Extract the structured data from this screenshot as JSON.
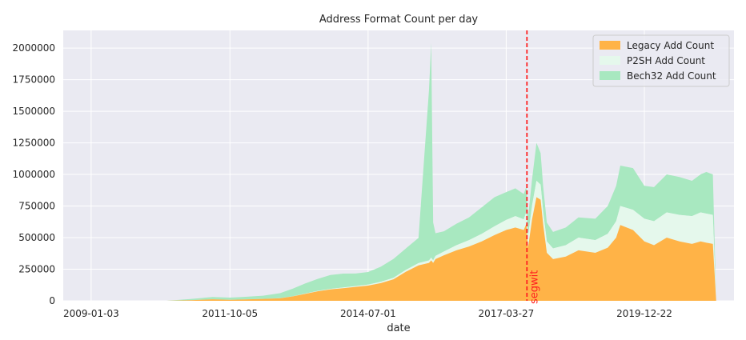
{
  "chart_data": {
    "type": "area",
    "stacked": true,
    "title": "Address Format Count per day",
    "xlabel": "date",
    "ylabel": "",
    "x_tick_labels": [
      "2009-01-03",
      "2011-10-05",
      "2014-07-01",
      "2017-03-27",
      "2019-12-22"
    ],
    "y_ticks": [
      0,
      250000,
      500000,
      750000,
      1000000,
      1250000,
      1500000,
      1750000,
      2000000
    ],
    "ylim": [
      0,
      2140000
    ],
    "xlim": [
      "2008-06-15",
      "2021-10-01"
    ],
    "grid": true,
    "legend_position": "top-right",
    "background": "#eaeaf2",
    "x": [
      "2009-01-03",
      "2009-07-01",
      "2010-01-01",
      "2010-07-01",
      "2011-01-01",
      "2011-06-01",
      "2011-10-05",
      "2012-01-01",
      "2012-06-01",
      "2012-10-01",
      "2013-01-01",
      "2013-04-01",
      "2013-07-01",
      "2013-10-01",
      "2014-01-01",
      "2014-04-01",
      "2014-07-01",
      "2014-10-01",
      "2015-01-01",
      "2015-04-01",
      "2015-07-01",
      "2015-09-15",
      "2015-10-01",
      "2015-10-15",
      "2015-11-01",
      "2016-01-01",
      "2016-04-01",
      "2016-07-01",
      "2016-10-01",
      "2017-01-01",
      "2017-03-27",
      "2017-06-01",
      "2017-08-01",
      "2017-08-20",
      "2017-09-01",
      "2017-10-01",
      "2017-11-01",
      "2017-12-01",
      "2017-12-20",
      "2018-01-15",
      "2018-03-01",
      "2018-06-01",
      "2018-09-01",
      "2019-01-01",
      "2019-04-01",
      "2019-06-01",
      "2019-07-01",
      "2019-10-01",
      "2019-12-22",
      "2020-03-01",
      "2020-06-01",
      "2020-09-01",
      "2020-12-01",
      "2021-02-01",
      "2021-03-15",
      "2021-05-01",
      "2021-05-25"
    ],
    "series": [
      {
        "name": "Legacy Add Count",
        "color": "#ffb347",
        "values": [
          0,
          0,
          0,
          0,
          5000,
          12000,
          8000,
          10000,
          15000,
          20000,
          35000,
          55000,
          75000,
          90000,
          100000,
          110000,
          120000,
          140000,
          170000,
          230000,
          280000,
          300000,
          320000,
          300000,
          330000,
          360000,
          400000,
          430000,
          470000,
          520000,
          560000,
          580000,
          560000,
          610000,
          420000,
          650000,
          820000,
          800000,
          600000,
          380000,
          330000,
          350000,
          400000,
          380000,
          420000,
          500000,
          600000,
          560000,
          470000,
          440000,
          500000,
          470000,
          450000,
          470000,
          460000,
          450000,
          0
        ]
      },
      {
        "name": "P2SH Add Count",
        "color": "#e5f8ec",
        "values": [
          0,
          0,
          0,
          0,
          0,
          0,
          0,
          0,
          0,
          500,
          1000,
          2000,
          3000,
          4000,
          5000,
          6000,
          8000,
          10000,
          12000,
          15000,
          18000,
          20000,
          22000,
          20000,
          25000,
          30000,
          40000,
          50000,
          60000,
          70000,
          80000,
          90000,
          85000,
          95000,
          90000,
          110000,
          130000,
          120000,
          100000,
          90000,
          85000,
          90000,
          100000,
          100000,
          110000,
          130000,
          150000,
          160000,
          180000,
          190000,
          200000,
          210000,
          220000,
          230000,
          230000,
          230000,
          0
        ]
      },
      {
        "name": "Bech32 Add Count",
        "color": "#a8e8c0",
        "values": [
          0,
          0,
          0,
          0,
          10000,
          18000,
          17000,
          20000,
          25000,
          40000,
          60000,
          80000,
          95000,
          110000,
          110000,
          100000,
          100000,
          120000,
          150000,
          170000,
          200000,
          1350000,
          1700000,
          300000,
          180000,
          160000,
          170000,
          180000,
          210000,
          230000,
          220000,
          220000,
          200000,
          200000,
          150000,
          210000,
          300000,
          250000,
          200000,
          150000,
          130000,
          140000,
          160000,
          170000,
          220000,
          280000,
          320000,
          330000,
          260000,
          270000,
          300000,
          300000,
          280000,
          300000,
          330000,
          320000,
          0
        ]
      }
    ],
    "annotations": [
      {
        "type": "vline",
        "x": "2017-08-24",
        "color": "#ff2020",
        "style": "dashed",
        "label": "segwit",
        "label_color": "#ff2020"
      }
    ]
  }
}
